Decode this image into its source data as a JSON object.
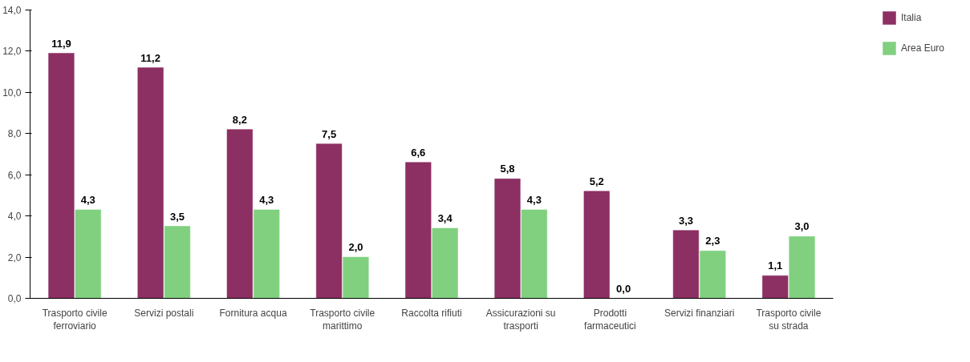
{
  "chart_data": {
    "type": "bar",
    "categories": [
      "Trasporto civile\nferroviario",
      "Servizi postali",
      "Fornitura acqua",
      "Trasporto civile\nmarittimo",
      "Raccolta rifiuti",
      "Assicurazioni su\ntrasporti",
      "Prodotti\nfarmaceutici",
      "Servizi finanziari",
      "Trasporto civile\nsu strada"
    ],
    "series": [
      {
        "name": "Italia",
        "color": "#8c2f62",
        "values": [
          11.9,
          11.2,
          8.2,
          7.5,
          6.6,
          5.8,
          5.2,
          3.3,
          1.1
        ],
        "value_labels": [
          "11,9",
          "11,2",
          "8,2",
          "7,5",
          "6,6",
          "5,8",
          "5,2",
          "3,3",
          "1,1"
        ]
      },
      {
        "name": "Area Euro",
        "color": "#80d080",
        "values": [
          4.3,
          3.5,
          4.3,
          2.0,
          3.4,
          4.3,
          0.0,
          2.3,
          3.0
        ],
        "value_labels": [
          "4,3",
          "3,5",
          "4,3",
          "2,0",
          "3,4",
          "4,3",
          "0,0",
          "2,3",
          "3,0"
        ]
      }
    ],
    "ylim": [
      0,
      14
    ],
    "yticks": [
      {
        "value": 0,
        "label": "0,0"
      },
      {
        "value": 2,
        "label": "2,0"
      },
      {
        "value": 4,
        "label": "4,0"
      },
      {
        "value": 6,
        "label": "6,0"
      },
      {
        "value": 8,
        "label": "8,0"
      },
      {
        "value": 10,
        "label": "10,0"
      },
      {
        "value": 12,
        "label": "12,0"
      },
      {
        "value": 14,
        "label": "14,0"
      }
    ],
    "grid": false,
    "legend": "top right"
  }
}
